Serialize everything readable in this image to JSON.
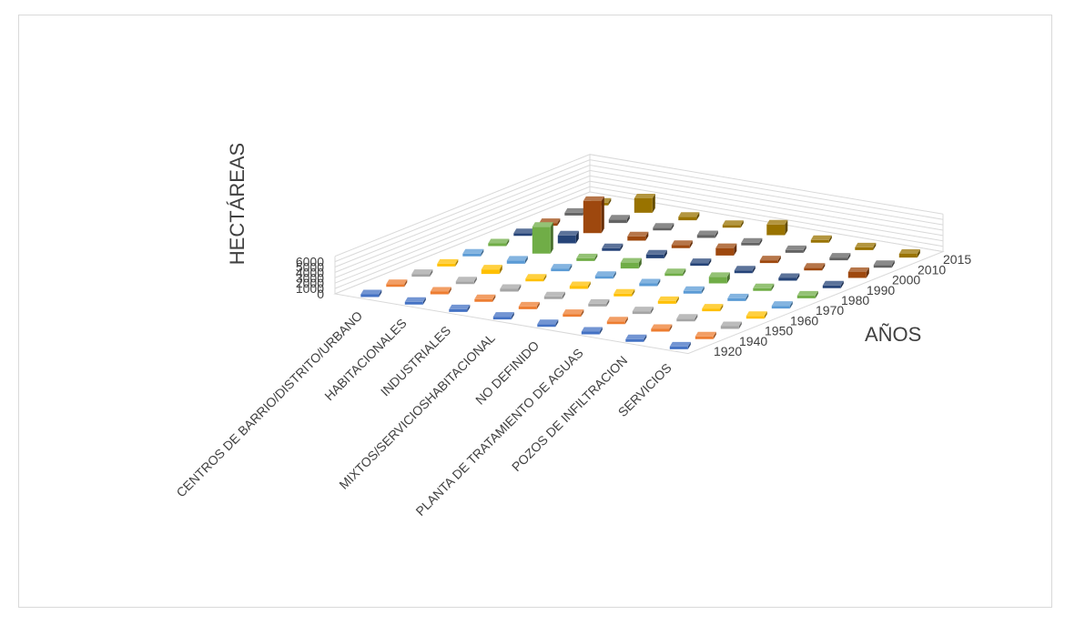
{
  "chart_data": {
    "type": "bar",
    "ylabel": "HECTÁREAS",
    "series_axis_label": "AÑOS",
    "ylim": [
      0,
      6000
    ],
    "yticks": [
      "0",
      "1000",
      "2000",
      "3000",
      "4000",
      "5000",
      "6000"
    ],
    "categories": [
      "CENTROS DE BARRIO/DISTRITO/URBANO",
      "HABITACIONALES",
      "INDUSTRIALES",
      "MIXTOS/SERVICIOSHABITACIONAL",
      "NO DEFINIDO",
      "PLANTA DE TRATAMIENTO DE AGUAS",
      "POZOS DE INFILTRACION",
      "SERVICIOS"
    ],
    "series": [
      {
        "name": "1920",
        "color": "#4472c4",
        "values": [
          40,
          30,
          20,
          20,
          20,
          0,
          0,
          20
        ]
      },
      {
        "name": "1940",
        "color": "#ed7d31",
        "values": [
          30,
          30,
          20,
          60,
          0,
          0,
          0,
          20
        ]
      },
      {
        "name": "1950",
        "color": "#a5a5a5",
        "values": [
          20,
          250,
          20,
          180,
          80,
          0,
          0,
          20
        ]
      },
      {
        "name": "1960",
        "color": "#ffc000",
        "values": [
          40,
          850,
          30,
          230,
          20,
          0,
          0,
          30
        ]
      },
      {
        "name": "1970",
        "color": "#5b9bd5",
        "values": [
          30,
          600,
          20,
          300,
          20,
          0,
          30,
          20
        ]
      },
      {
        "name": "1980",
        "color": "#70ad47",
        "values": [
          120,
          5000,
          350,
          1100,
          90,
          1200,
          20,
          300
        ]
      },
      {
        "name": "1990",
        "color": "#264478",
        "values": [
          60,
          1500,
          400,
          700,
          90,
          30,
          50,
          100
        ]
      },
      {
        "name": "2000",
        "color": "#9e480e",
        "values": [
          50,
          6000,
          800,
          600,
          1400,
          20,
          50,
          1100
        ]
      },
      {
        "name": "2010",
        "color": "#636363",
        "values": [
          30,
          650,
          150,
          200,
          450,
          20,
          30,
          30
        ]
      },
      {
        "name": "2015",
        "color": "#997300",
        "values": [
          50,
          2700,
          650,
          500,
          2000,
          40,
          30,
          700
        ]
      }
    ],
    "grid": true,
    "legend": "none"
  }
}
